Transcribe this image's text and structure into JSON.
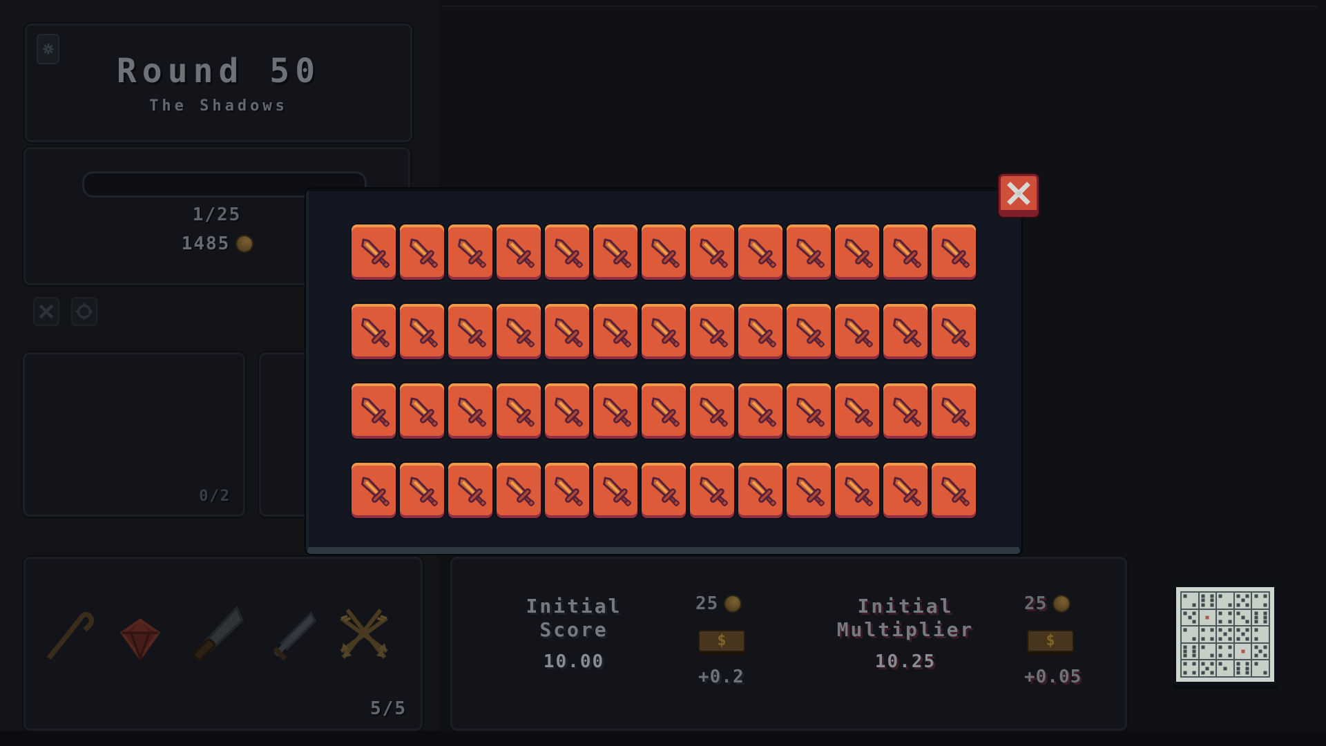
{
  "header": {
    "round_title": "Round 50",
    "round_subtitle": "The Shadows",
    "gear_icon": "gear-icon"
  },
  "progress": {
    "wave_counter": "1/25",
    "gold_amount": "1485",
    "coin_icon": "coin-icon"
  },
  "tool_icons": {
    "left": "x-icon",
    "right": "crosshair-icon"
  },
  "consumable_slots": {
    "count": "0/2"
  },
  "weapon_rack": {
    "count": "5/5",
    "items": [
      "cane",
      "ruby-gem",
      "knife",
      "sword",
      "arrow-bundle"
    ]
  },
  "upgrade_modal": {
    "tile_rows": 4,
    "tile_cols": 13,
    "total_tiles": 52,
    "tile_icon": "sword-icon",
    "close_icon": "close-x-icon"
  },
  "shop": {
    "score": {
      "label_line1": "Initial",
      "label_line2": "Score",
      "value": "10.00",
      "cost": "25",
      "increment": "+0.2",
      "buy_glyph": "$"
    },
    "multiplier": {
      "label_line1": "Initial",
      "label_line2": "Multiplier",
      "value": "10.25",
      "cost": "25",
      "increment": "+0.05",
      "buy_glyph": "$"
    }
  },
  "dice_panel": {
    "rows": 5,
    "cols": 5,
    "grid": [
      {
        "pips": [
          0,
          8
        ]
      },
      {
        "pips": [
          0,
          2,
          3,
          5,
          6,
          8
        ]
      },
      {
        "pips": [
          0,
          8
        ]
      },
      {
        "pips": [
          0,
          2,
          4,
          6,
          8
        ]
      },
      {
        "pips": [
          0,
          2,
          8
        ]
      },
      {
        "pips": [
          0,
          2,
          4,
          8
        ]
      },
      {
        "pips": [
          4
        ],
        "red": true
      },
      {
        "pips": [
          0,
          2,
          6,
          8
        ]
      },
      {
        "pips": [
          0,
          4,
          8
        ]
      },
      {
        "pips": [
          0,
          2,
          3,
          5,
          6,
          8
        ]
      },
      {
        "pips": [
          0,
          8
        ]
      },
      {
        "pips": [
          0,
          2,
          6,
          8
        ]
      },
      {
        "pips": [
          0,
          2,
          4,
          6,
          8
        ]
      },
      {
        "pips": [
          0,
          2,
          4,
          6,
          8
        ]
      },
      {
        "pips": [
          0,
          6
        ]
      },
      {
        "pips": [
          0,
          2,
          3,
          5,
          6,
          8
        ]
      },
      {
        "pips": [
          0,
          8
        ]
      },
      {
        "pips": [
          0,
          2,
          6,
          8
        ]
      },
      {
        "pips": [
          4
        ],
        "red": true
      },
      {
        "pips": [
          0,
          2,
          4,
          6,
          8
        ]
      },
      {
        "pips": [
          0,
          2,
          6,
          8
        ]
      },
      {
        "pips": [
          0,
          2,
          4,
          6,
          8
        ]
      },
      {
        "pips": [
          0,
          4
        ]
      },
      {
        "pips": [
          0,
          2,
          3,
          5,
          6,
          8
        ]
      },
      {
        "pips": [
          0,
          8
        ]
      }
    ]
  },
  "colors": {
    "tile_orange": "#de5b39",
    "tile_highlight": "#ee9a4b",
    "tile_shadow": "#8e2f44",
    "close_red": "#cf4f3b",
    "gold": "#8a6a33",
    "modal_bg": "#131722",
    "accent_stripe": "#7e2b2f"
  }
}
